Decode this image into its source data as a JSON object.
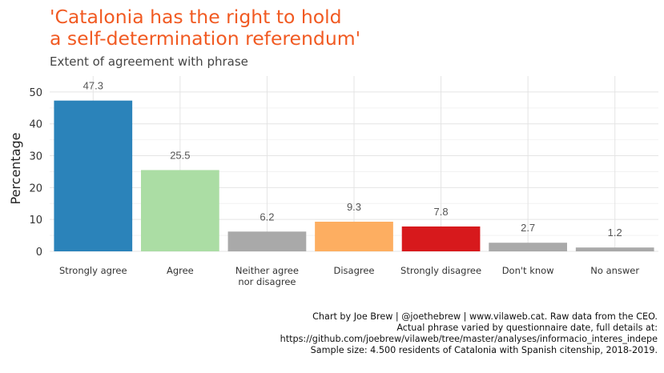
{
  "header": {
    "title": "'Catalonia has the right to hold\na self-determination referendum'",
    "subtitle": "Extent of agreement with phrase"
  },
  "chart_data": {
    "type": "bar",
    "categories": [
      "Strongly agree",
      "Agree",
      "Neither agree\nnor disagree",
      "Disagree",
      "Strongly disagree",
      "Don't know",
      "No answer"
    ],
    "values": [
      47.3,
      25.5,
      6.2,
      9.3,
      7.8,
      2.7,
      1.2
    ],
    "data_labels": [
      "47.3",
      "25.5",
      "6.2",
      "9.3",
      "7.8",
      "2.7",
      "1.2"
    ],
    "colors": [
      "#2B83BA",
      "#ABDDA4",
      "#A9A9A9",
      "#FDAE61",
      "#D7191C",
      "#A9A9A9",
      "#A9A9A9"
    ],
    "xlabel": "",
    "ylabel": "Percentage",
    "ylim": [
      0,
      55
    ],
    "yticks": [
      0,
      10,
      20,
      30,
      40,
      50
    ],
    "grid": true,
    "legend": "none"
  },
  "caption": {
    "lines": [
      "Chart by Joe Brew | @joethebrew | www.vilaweb.cat. Raw data from the CEO.",
      "Actual phrase varied by questionnaire date, full details at:",
      "https://github.com/joebrew/vilaweb/tree/master/analyses/informacio_interes_indepe",
      "Sample size: 4.500 residents of Catalonia with Spanish citenship, 2018-2019."
    ]
  }
}
